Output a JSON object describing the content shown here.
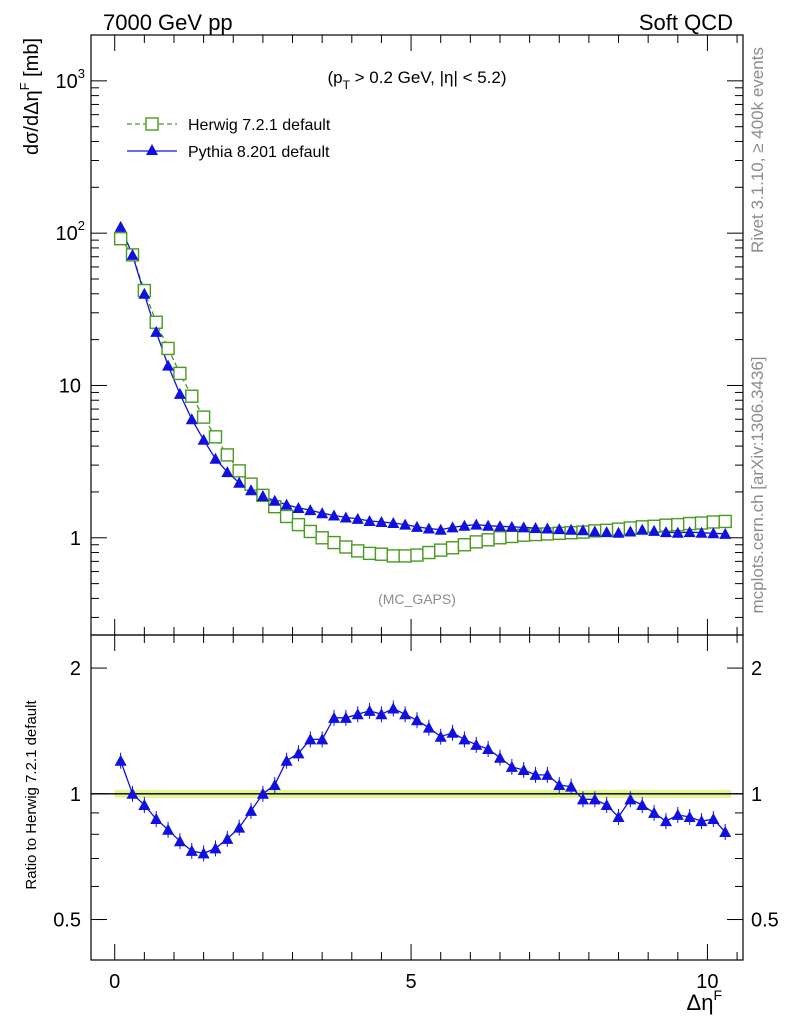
{
  "header": {
    "left": "7000 GeV pp",
    "right": "Soft QCD"
  },
  "side_labels": {
    "rivet": "Rivet 3.1.10, ≥ 400k events",
    "mcplots": "mcplots.cern.ch [arXiv:1306.3436]"
  },
  "chart_data": [
    {
      "type": "line",
      "title": "",
      "annotation": "(p_T > 0.2 GeV, |η| < 5.2)",
      "annotation_parts": {
        "open": "(p",
        "sub": "T",
        "rest": " > 0.2 GeV, |η| < 5.2)"
      },
      "analysis_label": "(MC_GAPS)",
      "ylabel": "dσ/dΔη^F [mb]",
      "ylabel_parts": {
        "base": "dσ/dΔη",
        "sup": "F",
        "unit": " [mb]"
      },
      "yscale": "log",
      "ylim": [
        0.23,
        2000
      ],
      "xlim": [
        -0.4,
        10.6
      ],
      "yticks": [
        {
          "v": 1,
          "label": "1"
        },
        {
          "v": 10,
          "label": "10"
        },
        {
          "v": 100,
          "base": "10",
          "exp": "2"
        },
        {
          "v": 1000,
          "base": "10",
          "exp": "3"
        }
      ],
      "grid": false,
      "legend_position": "top-left",
      "x": [
        0.1,
        0.3,
        0.5,
        0.7,
        0.9,
        1.1,
        1.3,
        1.5,
        1.7,
        1.9,
        2.1,
        2.3,
        2.5,
        2.7,
        2.9,
        3.1,
        3.3,
        3.5,
        3.7,
        3.9,
        4.1,
        4.3,
        4.5,
        4.7,
        4.9,
        5.1,
        5.3,
        5.5,
        5.7,
        5.9,
        6.1,
        6.3,
        6.5,
        6.7,
        6.9,
        7.1,
        7.3,
        7.5,
        7.7,
        7.9,
        8.1,
        8.3,
        8.5,
        8.7,
        8.9,
        9.1,
        9.3,
        9.5,
        9.7,
        9.9,
        10.1,
        10.3
      ],
      "series": [
        {
          "name": "Herwig 7.2.1 default",
          "color": "#4a9a20",
          "marker": "open-square",
          "linestyle": "dashed",
          "values": [
            92,
            72,
            42,
            26,
            17.5,
            12,
            8.5,
            6.2,
            4.6,
            3.5,
            2.75,
            2.25,
            1.9,
            1.6,
            1.38,
            1.22,
            1.1,
            1.0,
            0.93,
            0.87,
            0.82,
            0.79,
            0.78,
            0.76,
            0.76,
            0.77,
            0.8,
            0.83,
            0.86,
            0.9,
            0.94,
            0.97,
            1.0,
            1.02,
            1.04,
            1.05,
            1.06,
            1.07,
            1.08,
            1.09,
            1.11,
            1.12,
            1.14,
            1.16,
            1.18,
            1.19,
            1.21,
            1.22,
            1.24,
            1.25,
            1.27,
            1.28
          ]
        },
        {
          "name": "Pythia 8.201 default",
          "color": "#1010e0",
          "marker": "filled-triangle",
          "linestyle": "solid",
          "values": [
            110,
            72,
            40,
            22.5,
            13.5,
            8.8,
            6.0,
            4.4,
            3.3,
            2.7,
            2.3,
            2.05,
            1.88,
            1.75,
            1.65,
            1.57,
            1.52,
            1.45,
            1.4,
            1.36,
            1.33,
            1.29,
            1.27,
            1.25,
            1.22,
            1.18,
            1.15,
            1.13,
            1.17,
            1.2,
            1.22,
            1.2,
            1.19,
            1.18,
            1.17,
            1.16,
            1.15,
            1.14,
            1.13,
            1.12,
            1.1,
            1.09,
            1.08,
            1.1,
            1.13,
            1.11,
            1.09,
            1.08,
            1.09,
            1.08,
            1.07,
            1.06
          ]
        }
      ]
    },
    {
      "type": "line",
      "ylabel": "Ratio to Herwig 7.2.1 default",
      "xlabel": "Δη^F",
      "xlabel_parts": {
        "base": "Δη",
        "sup": "F"
      },
      "yscale": "log",
      "ylim": [
        0.4,
        2.4
      ],
      "xlim": [
        -0.4,
        10.6
      ],
      "yticks": [
        {
          "v": 0.5,
          "label": "0.5"
        },
        {
          "v": 1,
          "label": "1"
        },
        {
          "v": 2,
          "label": "2"
        }
      ],
      "xticks": [
        {
          "v": 0,
          "label": "0"
        },
        {
          "v": 5,
          "label": "5"
        },
        {
          "v": 10,
          "label": "10"
        }
      ],
      "reference": {
        "value": 1,
        "band_color": "#d8f070",
        "line_color": "#000000"
      },
      "x": [
        0.1,
        0.3,
        0.5,
        0.7,
        0.9,
        1.1,
        1.3,
        1.5,
        1.7,
        1.9,
        2.1,
        2.3,
        2.5,
        2.7,
        2.9,
        3.1,
        3.3,
        3.5,
        3.7,
        3.9,
        4.1,
        4.3,
        4.5,
        4.7,
        4.9,
        5.1,
        5.3,
        5.5,
        5.7,
        5.9,
        6.1,
        6.3,
        6.5,
        6.7,
        6.9,
        7.1,
        7.3,
        7.5,
        7.7,
        7.9,
        8.1,
        8.3,
        8.5,
        8.7,
        8.9,
        9.1,
        9.3,
        9.5,
        9.7,
        9.9,
        10.1,
        10.3
      ],
      "series": [
        {
          "name": "Pythia 8.201 default",
          "color": "#1010e0",
          "marker": "filled-triangle",
          "values": [
            1.2,
            1.0,
            0.94,
            0.87,
            0.82,
            0.77,
            0.73,
            0.72,
            0.74,
            0.78,
            0.83,
            0.91,
            1.0,
            1.05,
            1.2,
            1.25,
            1.35,
            1.35,
            1.52,
            1.52,
            1.55,
            1.58,
            1.55,
            1.6,
            1.55,
            1.5,
            1.44,
            1.37,
            1.4,
            1.35,
            1.31,
            1.28,
            1.22,
            1.16,
            1.14,
            1.11,
            1.11,
            1.05,
            1.04,
            0.97,
            0.97,
            0.94,
            0.88,
            0.97,
            0.94,
            0.9,
            0.86,
            0.89,
            0.88,
            0.86,
            0.87,
            0.81
          ]
        }
      ]
    }
  ]
}
